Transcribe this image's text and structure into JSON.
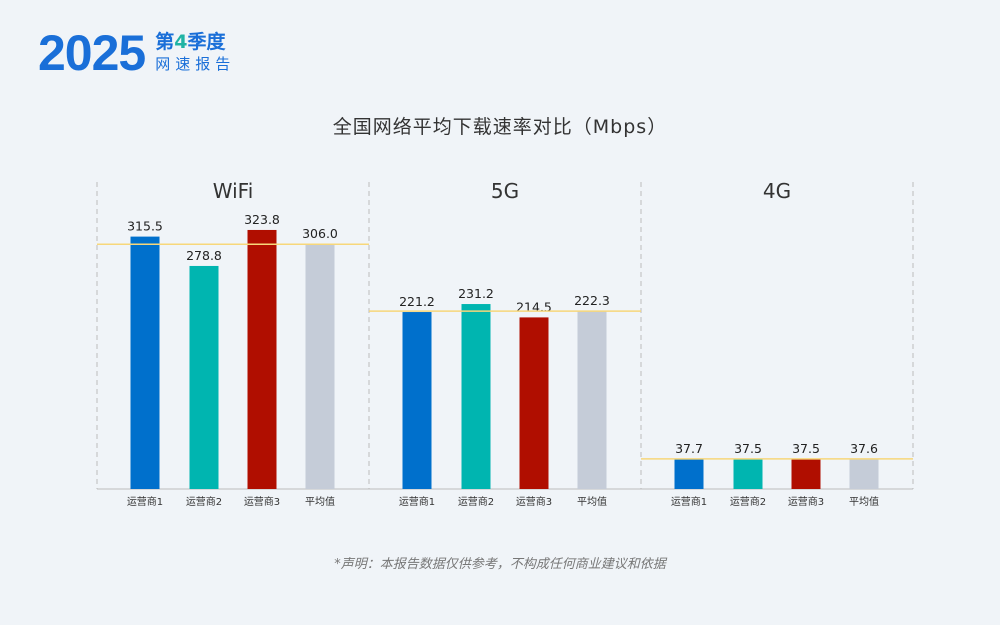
{
  "logo": {
    "year": "2025",
    "quarter_prefix": "第",
    "quarter_num": "4",
    "quarter_suffix": "季度",
    "report": "网速报告"
  },
  "note": "*声明：本报告数据仅供参考，不构成任何商业建议和依据",
  "colors": {
    "operator1": "#0070cc",
    "operator2": "#00b5b0",
    "operator3": "#b00e00",
    "average": "#c5ccd8",
    "avg_line": "#f7d77a"
  },
  "chart_data": {
    "type": "bar",
    "title": "全国网络平均下载速率对比（Mbps）",
    "categories": [
      "运营商1",
      "运营商2",
      "运营商3",
      "平均值"
    ],
    "panels": [
      {
        "name": "WiFi",
        "values": [
          315.5,
          278.8,
          323.8,
          306.0
        ],
        "labels": [
          "315.5",
          "278.8",
          "323.8",
          "306.0"
        ]
      },
      {
        "name": "5G",
        "values": [
          221.2,
          231.2,
          214.5,
          222.3
        ],
        "labels": [
          "221.2",
          "231.2",
          "214.5",
          "222.3"
        ]
      },
      {
        "name": "4G",
        "values": [
          37.7,
          37.5,
          37.5,
          37.6
        ],
        "labels": [
          "37.7",
          "37.5",
          "37.5",
          "37.6"
        ]
      }
    ],
    "average_line": "horizontal line at the average value in each panel",
    "ylim": [
      0,
      340
    ],
    "grid": false
  }
}
